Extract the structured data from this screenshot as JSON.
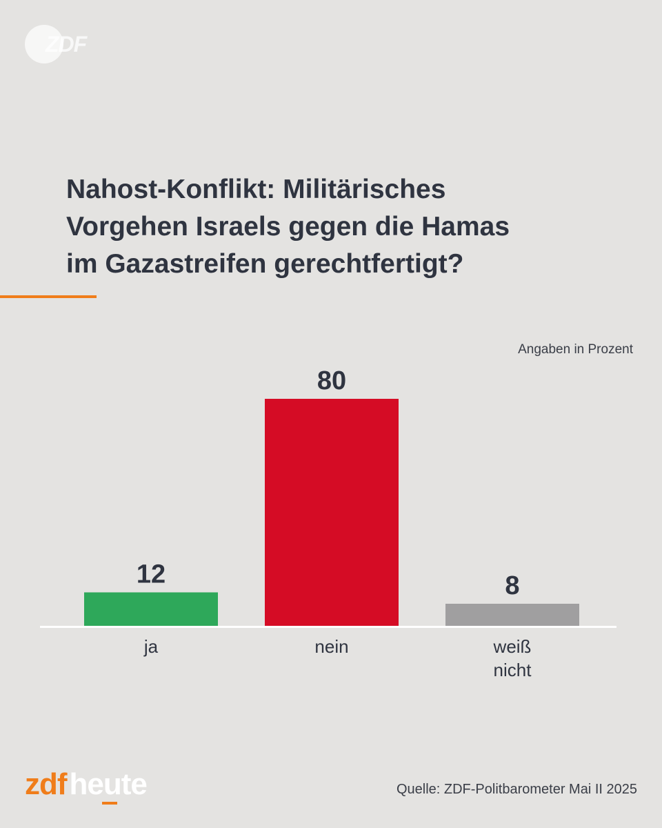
{
  "watermark": {
    "text": "ZDF"
  },
  "title_lines": [
    "Nahost-Konflikt: Militärisches",
    "Vorgehen Israels gegen die Hamas",
    "im Gazastreifen gerechtfertigt?"
  ],
  "unit_note": "Angaben in Prozent",
  "chart_data": {
    "type": "bar",
    "title": "Nahost-Konflikt: Militärisches Vorgehen Israels gegen die Hamas im Gazastreifen gerechtfertigt?",
    "categories": [
      [
        "ja"
      ],
      [
        "nein"
      ],
      [
        "weiß",
        "nicht"
      ]
    ],
    "values": [
      12,
      80,
      8
    ],
    "colors": [
      "#2ea85a",
      "#d50c25",
      "#a09fa0"
    ],
    "ylim": [
      0,
      80
    ],
    "grid": false
  },
  "footer": {
    "logo_zdf": "zdf",
    "logo_heute": "heute",
    "source": "Quelle: ZDF-Politbarometer Mai II 2025"
  }
}
